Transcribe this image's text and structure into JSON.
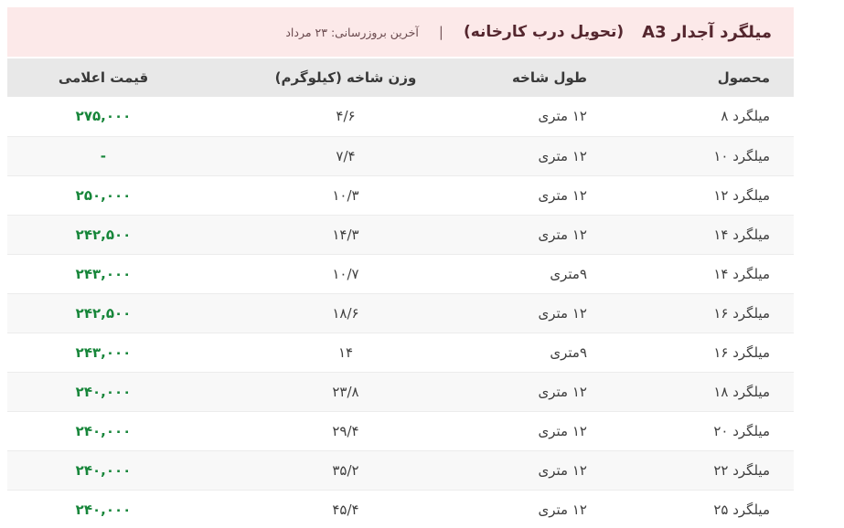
{
  "header": {
    "title": "میلگرد آجدار A3",
    "delivery_note": "(تحویل درب کارخانه)",
    "divider": "|",
    "last_update": "آخرین بروزرسانی: ۲۳ مرداد"
  },
  "table": {
    "columns": {
      "product": "محصول",
      "length": "طول شاخه",
      "weight": "وزن شاخه (کیلوگرم)",
      "price": "قیمت اعلامی"
    },
    "rows": [
      {
        "product": "میلگرد ۸",
        "length": "۱۲ متری",
        "weight": "۴/۶",
        "price": "۲۷۵,۰۰۰"
      },
      {
        "product": "میلگرد ۱۰",
        "length": "۱۲ متری",
        "weight": "۷/۴",
        "price": "-"
      },
      {
        "product": "میلگرد ۱۲",
        "length": "۱۲ متری",
        "weight": "۱۰/۳",
        "price": "۲۵۰,۰۰۰"
      },
      {
        "product": "میلگرد ۱۴",
        "length": "۱۲ متری",
        "weight": "۱۴/۳",
        "price": "۲۴۲,۵۰۰"
      },
      {
        "product": "میلگرد ۱۴",
        "length": "۹متری",
        "weight": "۱۰/۷",
        "price": "۲۴۳,۰۰۰"
      },
      {
        "product": "میلگرد ۱۶",
        "length": "۱۲ متری",
        "weight": "۱۸/۶",
        "price": "۲۴۲,۵۰۰"
      },
      {
        "product": "میلگرد ۱۶",
        "length": "۹متری",
        "weight": "۱۴",
        "price": "۲۴۳,۰۰۰"
      },
      {
        "product": "میلگرد ۱۸",
        "length": "۱۲ متری",
        "weight": "۲۳/۸",
        "price": "۲۴۰,۰۰۰"
      },
      {
        "product": "میلگرد ۲۰",
        "length": "۱۲ متری",
        "weight": "۲۹/۴",
        "price": "۲۴۰,۰۰۰"
      },
      {
        "product": "میلگرد ۲۲",
        "length": "۱۲ متری",
        "weight": "۳۵/۲",
        "price": "۲۴۰,۰۰۰"
      },
      {
        "product": "میلگرد ۲۵",
        "length": "۱۲ متری",
        "weight": "۴۵/۴",
        "price": "۲۴۰,۰۰۰"
      }
    ]
  },
  "colors": {
    "top_bar_background": "#fce9e9",
    "title_text": "#54262e",
    "table_header_background": "#e8e8e8",
    "price_green": "#17863a",
    "row_alt_background": "#f8f8f8"
  }
}
